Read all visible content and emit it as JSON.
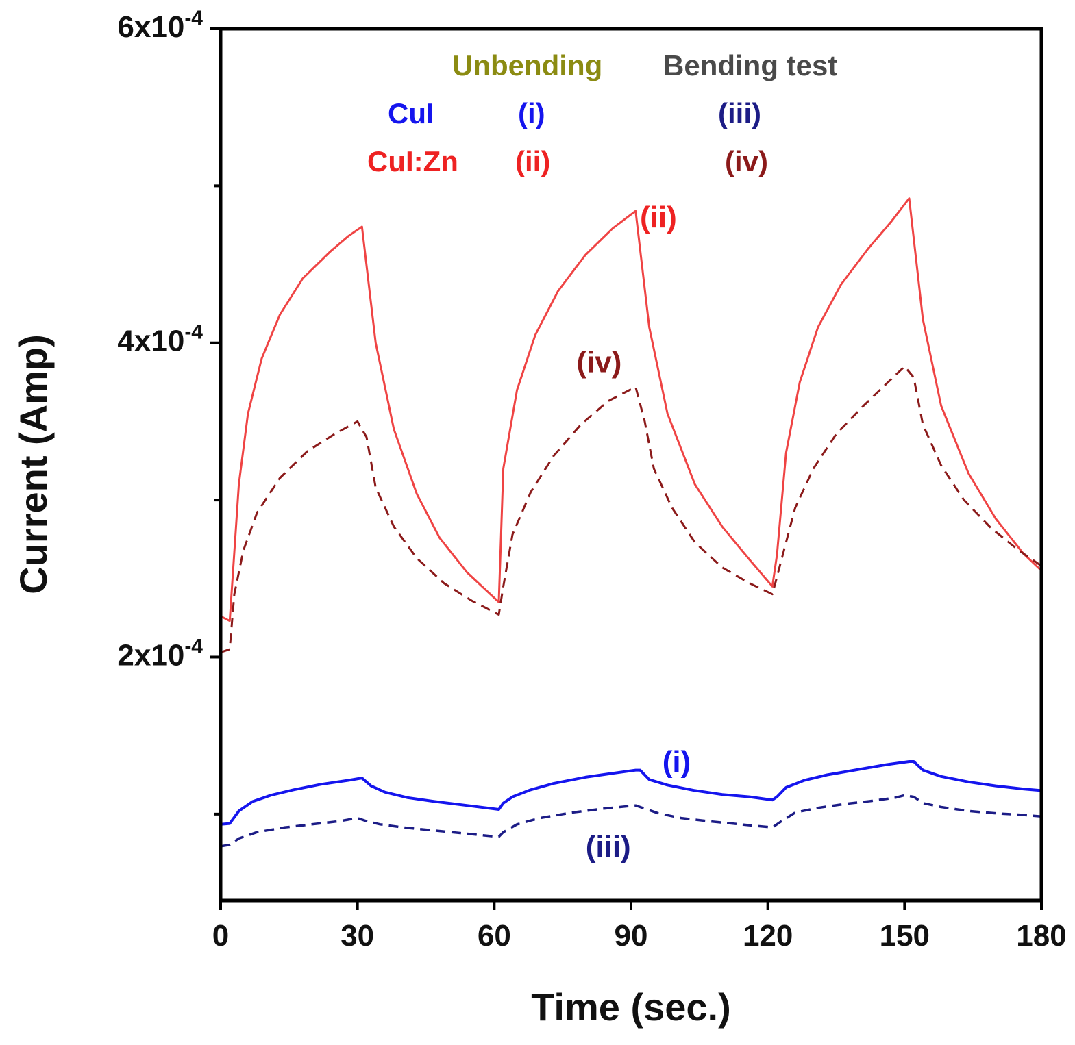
{
  "chart_data": {
    "type": "line",
    "title": "",
    "xlabel": "Time (sec.)",
    "ylabel": "Current (Amp)",
    "xlim": [
      0,
      180
    ],
    "ylim": [
      4.5e-05,
      0.0006
    ],
    "x_ticks": [
      0,
      30,
      60,
      90,
      120,
      150,
      180
    ],
    "x_tick_labels": [
      "0",
      "30",
      "60",
      "90",
      "120",
      "150",
      "180"
    ],
    "y_ticks": [
      0.0002,
      0.0004,
      0.0006
    ],
    "y_tick_labels": [
      {
        "mantissa": "2x10",
        "exp": "-4"
      },
      {
        "mantissa": "4x10",
        "exp": "-4"
      },
      {
        "mantissa": "6x10",
        "exp": "-4"
      }
    ],
    "y_minor_ticks": [
      0.0001,
      0.0003,
      0.0005
    ],
    "legend": {
      "header": [
        {
          "text": "Unbending",
          "color": "#8b8b12"
        },
        {
          "text": "Bending test",
          "color": "#4a4a4a"
        }
      ],
      "rows": [
        {
          "material": "CuI",
          "unbending": "(i)",
          "bending": "(iii)",
          "material_color": "#1515ee",
          "unbending_color": "#1515ee",
          "bending_color": "#1c1c86"
        },
        {
          "material": "CuI:Zn",
          "unbending": "(ii)",
          "bending": "(iv)",
          "material_color": "#ee2222",
          "unbending_color": "#ee2222",
          "bending_color": "#8b1a1a"
        }
      ]
    },
    "annotations": [
      {
        "text": "(ii)",
        "x": 96,
        "y": 0.00048,
        "color": "#ee2222"
      },
      {
        "text": "(iv)",
        "x": 83,
        "y": 0.000388,
        "color": "#8b1a1a"
      },
      {
        "text": "(i)",
        "x": 100,
        "y": 0.0001335,
        "color": "#1515ee"
      },
      {
        "text": "(iii)",
        "x": 85,
        "y": 7.95e-05,
        "color": "#1c1c86"
      }
    ],
    "series": [
      {
        "name": "(ii) CuI:Zn Unbending",
        "color": "#ef4444",
        "dash": "solid",
        "width": 3,
        "points": [
          [
            0,
            0.000226
          ],
          [
            2,
            0.000223
          ],
          [
            4,
            0.00031
          ],
          [
            6,
            0.000355
          ],
          [
            9,
            0.00039
          ],
          [
            13,
            0.000418
          ],
          [
            18,
            0.000441
          ],
          [
            24,
            0.000458
          ],
          [
            28,
            0.000468
          ],
          [
            31,
            0.000474
          ],
          [
            34,
            0.0004
          ],
          [
            38,
            0.000345
          ],
          [
            43,
            0.000304
          ],
          [
            48,
            0.000276
          ],
          [
            54,
            0.000254
          ],
          [
            61,
            0.000235
          ],
          [
            62,
            0.00032
          ],
          [
            65,
            0.00037
          ],
          [
            69,
            0.000405
          ],
          [
            74,
            0.000433
          ],
          [
            80,
            0.000456
          ],
          [
            86,
            0.000473
          ],
          [
            91,
            0.000484
          ],
          [
            94,
            0.00041
          ],
          [
            98,
            0.000355
          ],
          [
            104,
            0.00031
          ],
          [
            110,
            0.000283
          ],
          [
            116,
            0.000262
          ],
          [
            121,
            0.000245
          ],
          [
            122,
            0.000265
          ],
          [
            124,
            0.00033
          ],
          [
            127,
            0.000375
          ],
          [
            131,
            0.00041
          ],
          [
            136,
            0.000437
          ],
          [
            142,
            0.00046
          ],
          [
            147,
            0.000477
          ],
          [
            151,
            0.000492
          ],
          [
            154,
            0.000415
          ],
          [
            158,
            0.00036
          ],
          [
            164,
            0.000317
          ],
          [
            170,
            0.000288
          ],
          [
            176,
            0.000266
          ],
          [
            180,
            0.000255
          ]
        ]
      },
      {
        "name": "(iv) CuI:Zn Bending test",
        "color": "#8b1a1a",
        "dash": "dashed",
        "width": 3,
        "points": [
          [
            0,
            0.000203
          ],
          [
            2,
            0.000205
          ],
          [
            3,
            0.00024
          ],
          [
            5,
            0.000268
          ],
          [
            8,
            0.000292
          ],
          [
            13,
            0.000314
          ],
          [
            19,
            0.000331
          ],
          [
            25,
            0.000342
          ],
          [
            30,
            0.00035
          ],
          [
            32,
            0.00034
          ],
          [
            34,
            0.000308
          ],
          [
            38,
            0.000283
          ],
          [
            43,
            0.000263
          ],
          [
            49,
            0.000247
          ],
          [
            55,
            0.000236
          ],
          [
            61,
            0.000227
          ],
          [
            62,
            0.000245
          ],
          [
            64,
            0.000278
          ],
          [
            68,
            0.000305
          ],
          [
            73,
            0.000328
          ],
          [
            79,
            0.000348
          ],
          [
            85,
            0.000363
          ],
          [
            91,
            0.000372
          ],
          [
            93,
            0.00035
          ],
          [
            95,
            0.00032
          ],
          [
            99,
            0.000295
          ],
          [
            104,
            0.000273
          ],
          [
            110,
            0.000257
          ],
          [
            116,
            0.000247
          ],
          [
            121,
            0.00024
          ],
          [
            123,
            0.000262
          ],
          [
            126,
            0.000295
          ],
          [
            130,
            0.00032
          ],
          [
            135,
            0.000342
          ],
          [
            141,
            0.00036
          ],
          [
            146,
            0.000374
          ],
          [
            150,
            0.000385
          ],
          [
            152,
            0.000378
          ],
          [
            154,
            0.000348
          ],
          [
            158,
            0.000322
          ],
          [
            163,
            0.0003
          ],
          [
            169,
            0.000282
          ],
          [
            175,
            0.000268
          ],
          [
            180,
            0.000258
          ]
        ]
      },
      {
        "name": "(i) CuI Unbending",
        "color": "#1515ee",
        "dash": "solid",
        "width": 4,
        "points": [
          [
            0,
            9.35e-05
          ],
          [
            2,
            9.4e-05
          ],
          [
            4,
            0.000102
          ],
          [
            7,
            0.000108
          ],
          [
            11,
            0.000112
          ],
          [
            16,
            0.0001155
          ],
          [
            22,
            0.000119
          ],
          [
            28,
            0.0001215
          ],
          [
            31,
            0.000123
          ],
          [
            33,
            0.000118
          ],
          [
            36,
            0.000114
          ],
          [
            41,
            0.0001105
          ],
          [
            47,
            0.000108
          ],
          [
            54,
            0.0001055
          ],
          [
            61,
            0.000103
          ],
          [
            62,
            0.000107
          ],
          [
            64,
            0.000111
          ],
          [
            68,
            0.0001155
          ],
          [
            73,
            0.0001195
          ],
          [
            80,
            0.0001235
          ],
          [
            86,
            0.000126
          ],
          [
            91,
            0.000128
          ],
          [
            92,
            0.000128
          ],
          [
            94,
            0.000122
          ],
          [
            98,
            0.0001185
          ],
          [
            104,
            0.000115
          ],
          [
            110,
            0.0001125
          ],
          [
            116,
            0.000111
          ],
          [
            121,
            0.000109
          ],
          [
            122,
            0.000111
          ],
          [
            124,
            0.000117
          ],
          [
            128,
            0.0001215
          ],
          [
            133,
            0.000125
          ],
          [
            140,
            0.0001285
          ],
          [
            146,
            0.0001315
          ],
          [
            151,
            0.0001335
          ],
          [
            152,
            0.0001335
          ],
          [
            154,
            0.000128
          ],
          [
            158,
            0.000124
          ],
          [
            164,
            0.0001205
          ],
          [
            170,
            0.000118
          ],
          [
            176,
            0.000116
          ],
          [
            180,
            0.000115
          ]
        ]
      },
      {
        "name": "(iii) CuI Bending test",
        "color": "#1c1c86",
        "dash": "dashed",
        "width": 3.5,
        "points": [
          [
            0,
            7.95e-05
          ],
          [
            2,
            8.05e-05
          ],
          [
            4,
            8.45e-05
          ],
          [
            8,
            8.85e-05
          ],
          [
            14,
            9.15e-05
          ],
          [
            20,
            9.35e-05
          ],
          [
            26,
            9.55e-05
          ],
          [
            30,
            9.75e-05
          ],
          [
            32,
            9.55e-05
          ],
          [
            35,
            9.35e-05
          ],
          [
            40,
            9.15e-05
          ],
          [
            47,
            8.95e-05
          ],
          [
            54,
            8.75e-05
          ],
          [
            61,
            8.55e-05
          ],
          [
            62,
            8.85e-05
          ],
          [
            65,
            9.35e-05
          ],
          [
            70,
            9.75e-05
          ],
          [
            77,
            0.000101
          ],
          [
            84,
            0.0001035
          ],
          [
            91,
            0.0001055
          ],
          [
            93,
            0.0001035
          ],
          [
            96,
            0.0001005
          ],
          [
            101,
            9.75e-05
          ],
          [
            107,
            9.55e-05
          ],
          [
            114,
            9.35e-05
          ],
          [
            121,
            9.15e-05
          ],
          [
            123,
            9.55e-05
          ],
          [
            126,
            0.000101
          ],
          [
            131,
            0.000104
          ],
          [
            137,
            0.0001065
          ],
          [
            143,
            0.0001085
          ],
          [
            148,
            0.0001105
          ],
          [
            150,
            0.000112
          ],
          [
            152,
            0.000111
          ],
          [
            154,
            0.000107
          ],
          [
            158,
            0.0001045
          ],
          [
            164,
            0.000102
          ],
          [
            170,
            0.0001005
          ],
          [
            176,
            9.95e-05
          ],
          [
            180,
            9.85e-05
          ]
        ]
      }
    ]
  }
}
